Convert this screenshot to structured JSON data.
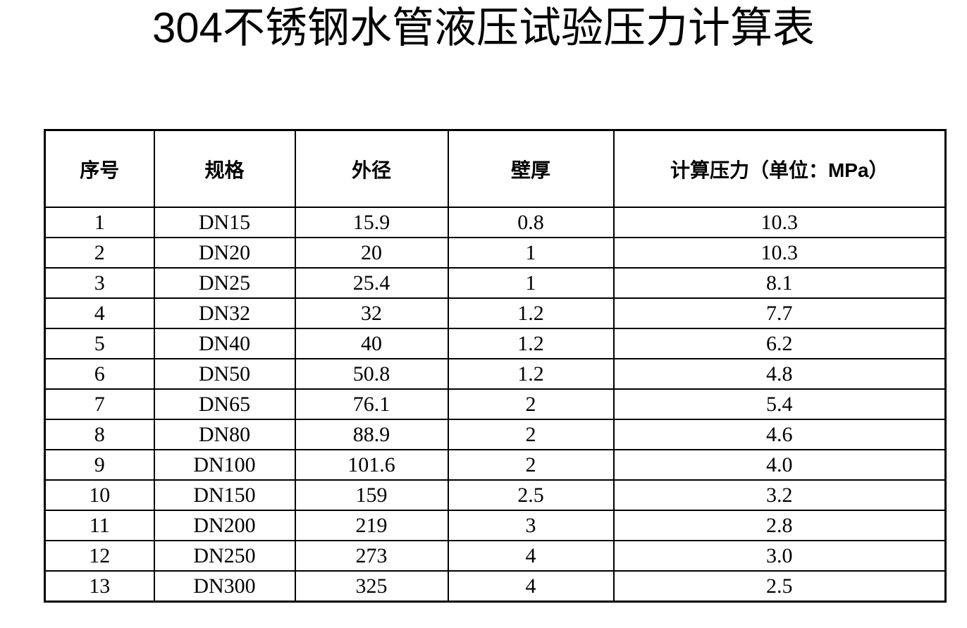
{
  "title": "304不锈钢水管液压试验压力计算表",
  "table": {
    "columns": [
      "序号",
      "规格",
      "外径",
      "壁厚",
      "计算压力（单位：MPa）"
    ],
    "rows": [
      [
        "1",
        "DN15",
        "15.9",
        "0.8",
        "10.3"
      ],
      [
        "2",
        "DN20",
        "20",
        "1",
        "10.3"
      ],
      [
        "3",
        "DN25",
        "25.4",
        "1",
        "8.1"
      ],
      [
        "4",
        "DN32",
        "32",
        "1.2",
        "7.7"
      ],
      [
        "5",
        "DN40",
        "40",
        "1.2",
        "6.2"
      ],
      [
        "6",
        "DN50",
        "50.8",
        "1.2",
        "4.8"
      ],
      [
        "7",
        "DN65",
        "76.1",
        "2",
        "5.4"
      ],
      [
        "8",
        "DN80",
        "88.9",
        "2",
        "4.6"
      ],
      [
        "9",
        "DN100",
        "101.6",
        "2",
        "4.0"
      ],
      [
        "10",
        "DN150",
        "159",
        "2.5",
        "3.2"
      ],
      [
        "11",
        "DN200",
        "219",
        "3",
        "2.8"
      ],
      [
        "12",
        "DN250",
        "273",
        "4",
        "3.0"
      ],
      [
        "13",
        "DN300",
        "325",
        "4",
        "2.5"
      ]
    ]
  },
  "colors": {
    "text": "#000000",
    "border": "#000000",
    "background": "#ffffff"
  }
}
